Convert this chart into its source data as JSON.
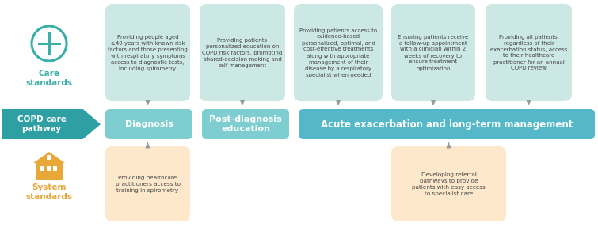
{
  "bg_color": "#ffffff",
  "care_icon_color": "#3aafa9",
  "care_label_color": "#3aafa9",
  "system_icon_color": "#e8a838",
  "system_label_color": "#e8a838",
  "pathway_box_color": "#2e9fa3",
  "pathway_text_color": "#ffffff",
  "pathway_label": "COPD care\npathway",
  "diagnosis_box_color": "#7ecdd0",
  "diagnosis_label": "Diagnosis",
  "post_diag_box_color": "#7ecdd0",
  "post_diag_label": "Post-diagnosis\neducation",
  "acute_box_color": "#55b8c9",
  "acute_label": "Acute exacerbation and long-term management",
  "care_box_fill": "#cce8e5",
  "system_box_fill": "#fde8cb",
  "arrow_color": "#999999",
  "text_color": "#444444",
  "care_texts": [
    "Providing people aged\n≥40 years with known risk\nfactors and those presenting\nwith respiratory symptoms\naccess to diagnostic tests,\nincluding spirometry",
    "Providing patients\npersonalized education on\nCOPD risk factors, promoting\nshared-decision making and\nself-management",
    "Providing patients access to\nevidence-based\npersonalized, optimal, and\ncost-effective treatments\nalong with appropriate\nmanagement of their\ndisease by a respiratory\nspecialist when needed",
    "Ensuring patients receive\na follow-up appointment\nwith a clinician within 2\nweeks of recovery to\nensure treatment\noptimization",
    "Providing all patients,\nregardless of their\nexacerbation status, access\nto their healthcare\npractitioner for an annual\nCOPD review"
  ],
  "system_texts": [
    "Providing healthcare\npractitioners access to\ntraining in spirometry",
    "Developing referral\npathways to provide\npatients with easy access\nto specialist care"
  ]
}
